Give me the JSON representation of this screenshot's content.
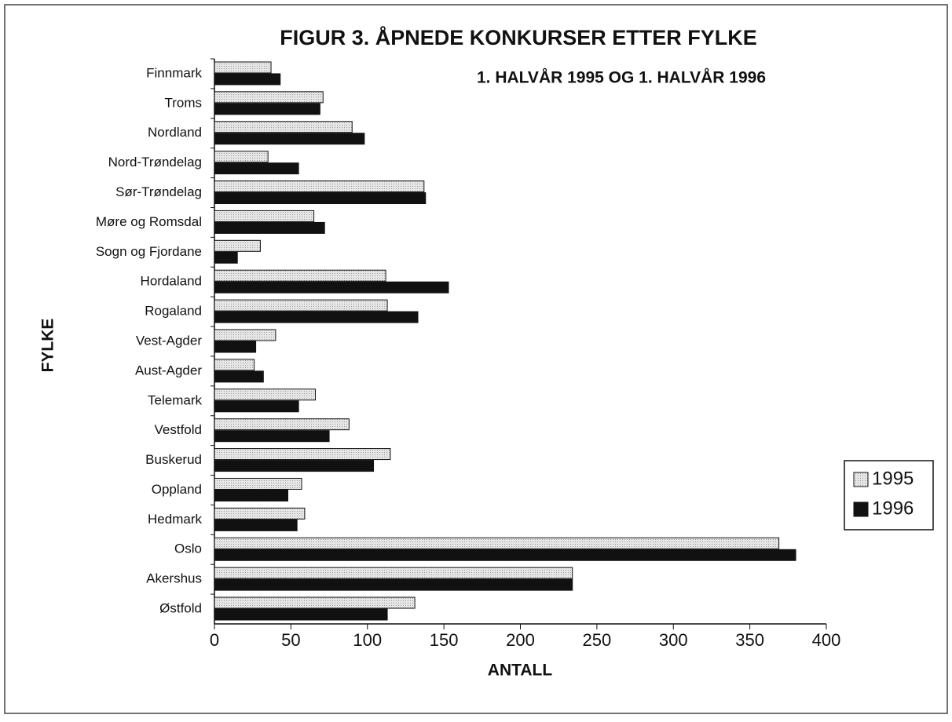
{
  "chart_data": {
    "type": "hbar",
    "title": "FIGUR 3. ÅPNEDE KONKURSER ETTER FYLKE",
    "subtitle": "1. HALVÅR 1995 OG 1. HALVÅR 1996",
    "x_label": "ANTALL",
    "y_label": "FYLKE",
    "categories": [
      "Finnmark",
      "Troms",
      "Nordland",
      "Nord-Trøndelag",
      "Sør-Trøndelag",
      "Møre og Romsdal",
      "Sogn og Fjordane",
      "Hordaland",
      "Rogaland",
      "Vest-Agder",
      "Aust-Agder",
      "Telemark",
      "Vestfold",
      "Buskerud",
      "Oppland",
      "Hedmark",
      "Oslo",
      "Akershus",
      "Østfold"
    ],
    "series": [
      {
        "name": "1995",
        "color": "#e6e6e6",
        "values": [
          37,
          71,
          90,
          35,
          137,
          65,
          30,
          112,
          113,
          40,
          26,
          66,
          88,
          115,
          57,
          59,
          369,
          234,
          131
        ]
      },
      {
        "name": "1996",
        "color": "#111111",
        "values": [
          43,
          69,
          98,
          55,
          138,
          72,
          15,
          153,
          133,
          27,
          32,
          55,
          75,
          104,
          48,
          54,
          380,
          234,
          113
        ]
      }
    ],
    "xlim": [
      0,
      400
    ],
    "xticks": [
      0,
      50,
      100,
      150,
      200,
      250,
      300,
      350,
      400
    ],
    "grid": false,
    "legend": "right"
  }
}
